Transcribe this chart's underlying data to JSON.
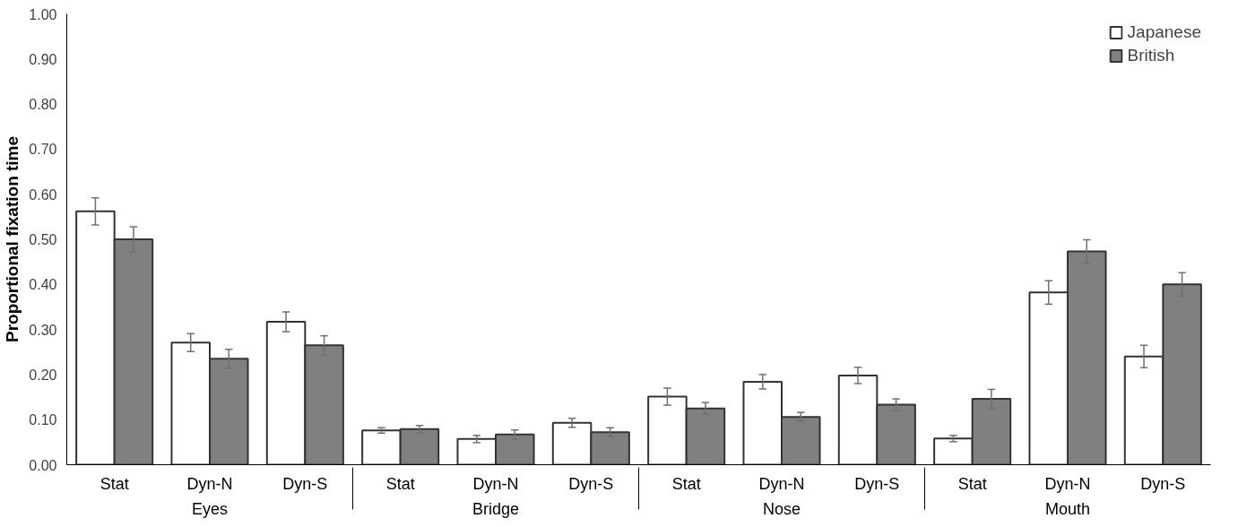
{
  "chart_data": {
    "type": "bar",
    "ylabel": "Proportional fixation time",
    "categories": [
      "Stat",
      "Dyn-N",
      "Dyn-S",
      "Stat",
      "Dyn-N",
      "Dyn-S",
      "Stat",
      "Dyn-N",
      "Dyn-S",
      "Stat",
      "Dyn-N",
      "Dyn-S"
    ],
    "annotations": [
      "Eyes",
      "Bridge",
      "Nose",
      "Mouth"
    ],
    "series": [
      {
        "name": "Japanese",
        "color": "#ffffff",
        "values": [
          0.562,
          0.271,
          0.317,
          0.076,
          0.057,
          0.093,
          0.151,
          0.184,
          0.198,
          0.058,
          0.382,
          0.24
        ],
        "errors": [
          0.03,
          0.02,
          0.022,
          0.006,
          0.008,
          0.01,
          0.019,
          0.016,
          0.018,
          0.007,
          0.026,
          0.025
        ]
      },
      {
        "name": "British",
        "color": "#808080",
        "values": [
          0.5,
          0.235,
          0.265,
          0.079,
          0.067,
          0.072,
          0.125,
          0.106,
          0.133,
          0.146,
          0.473,
          0.4
        ],
        "errors": [
          0.028,
          0.021,
          0.021,
          0.008,
          0.01,
          0.01,
          0.013,
          0.01,
          0.013,
          0.021,
          0.026,
          0.026
        ]
      }
    ],
    "ylim": [
      0,
      1
    ],
    "yticks": [
      {
        "value": 0,
        "label": "0.00"
      },
      {
        "value": 0.1,
        "label": "0.10"
      },
      {
        "value": 0.2,
        "label": "0.20"
      },
      {
        "value": 0.3,
        "label": "0.30"
      },
      {
        "value": 0.4,
        "label": "0.40"
      },
      {
        "value": 0.5,
        "label": "0.50"
      },
      {
        "value": 0.6,
        "label": "0.60"
      },
      {
        "value": 0.7,
        "label": "0.70"
      },
      {
        "value": 0.8,
        "label": "0.80"
      },
      {
        "value": 0.9,
        "label": "0.90"
      },
      {
        "value": 1,
        "label": "1.00"
      }
    ],
    "grid": false,
    "legend": "top right"
  }
}
